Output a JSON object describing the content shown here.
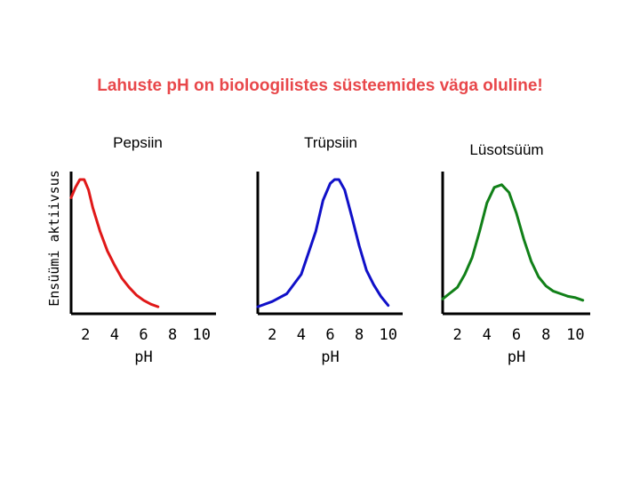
{
  "title": "Lahuste pH on bioloogilistes süsteemides väga oluline!",
  "colors": {
    "title": "#e8474a",
    "axis": "#000000"
  },
  "ylabel": "Ensüümi aktiivsus",
  "chart_data": [
    {
      "type": "line",
      "title": "Pepsiin",
      "xlabel": "pH",
      "xticks": [
        "2",
        "4",
        "6",
        "8",
        "10"
      ],
      "xlim": [
        1,
        11
      ],
      "ylim": [
        0,
        1
      ],
      "color": "#e01818",
      "x": [
        1.0,
        1.3,
        1.6,
        1.9,
        2.2,
        2.5,
        3.0,
        3.5,
        4.0,
        4.5,
        5.0,
        5.5,
        6.0,
        6.5,
        7.0
      ],
      "y": [
        0.86,
        0.94,
        1.0,
        1.0,
        0.92,
        0.78,
        0.6,
        0.45,
        0.34,
        0.24,
        0.17,
        0.11,
        0.07,
        0.04,
        0.02
      ]
    },
    {
      "type": "line",
      "title": "Trüpsiin",
      "xlabel": "pH",
      "xticks": [
        "2",
        "4",
        "6",
        "8",
        "10"
      ],
      "xlim": [
        1,
        11
      ],
      "ylim": [
        0,
        1
      ],
      "color": "#1010c8",
      "x": [
        1.0,
        2.0,
        3.0,
        4.0,
        5.0,
        5.5,
        6.0,
        6.3,
        6.6,
        7.0,
        7.5,
        8.0,
        8.5,
        9.0,
        9.5,
        10.0
      ],
      "y": [
        0.02,
        0.06,
        0.12,
        0.27,
        0.6,
        0.84,
        0.97,
        1.0,
        1.0,
        0.92,
        0.71,
        0.49,
        0.3,
        0.19,
        0.1,
        0.03
      ]
    },
    {
      "type": "line",
      "title": "Lüsotsüüm",
      "xlabel": "pH",
      "xticks": [
        "2",
        "4",
        "6",
        "8",
        "10"
      ],
      "xlim": [
        1,
        11
      ],
      "ylim": [
        0,
        1
      ],
      "color": "#118018",
      "x": [
        1.0,
        2.0,
        2.5,
        3.0,
        3.5,
        4.0,
        4.5,
        5.0,
        5.5,
        6.0,
        6.5,
        7.0,
        7.5,
        8.0,
        8.5,
        9.0,
        9.5,
        10.0,
        10.5
      ],
      "y": [
        0.08,
        0.17,
        0.27,
        0.4,
        0.6,
        0.82,
        0.94,
        0.96,
        0.9,
        0.74,
        0.54,
        0.37,
        0.25,
        0.18,
        0.14,
        0.12,
        0.1,
        0.09,
        0.07
      ]
    }
  ]
}
